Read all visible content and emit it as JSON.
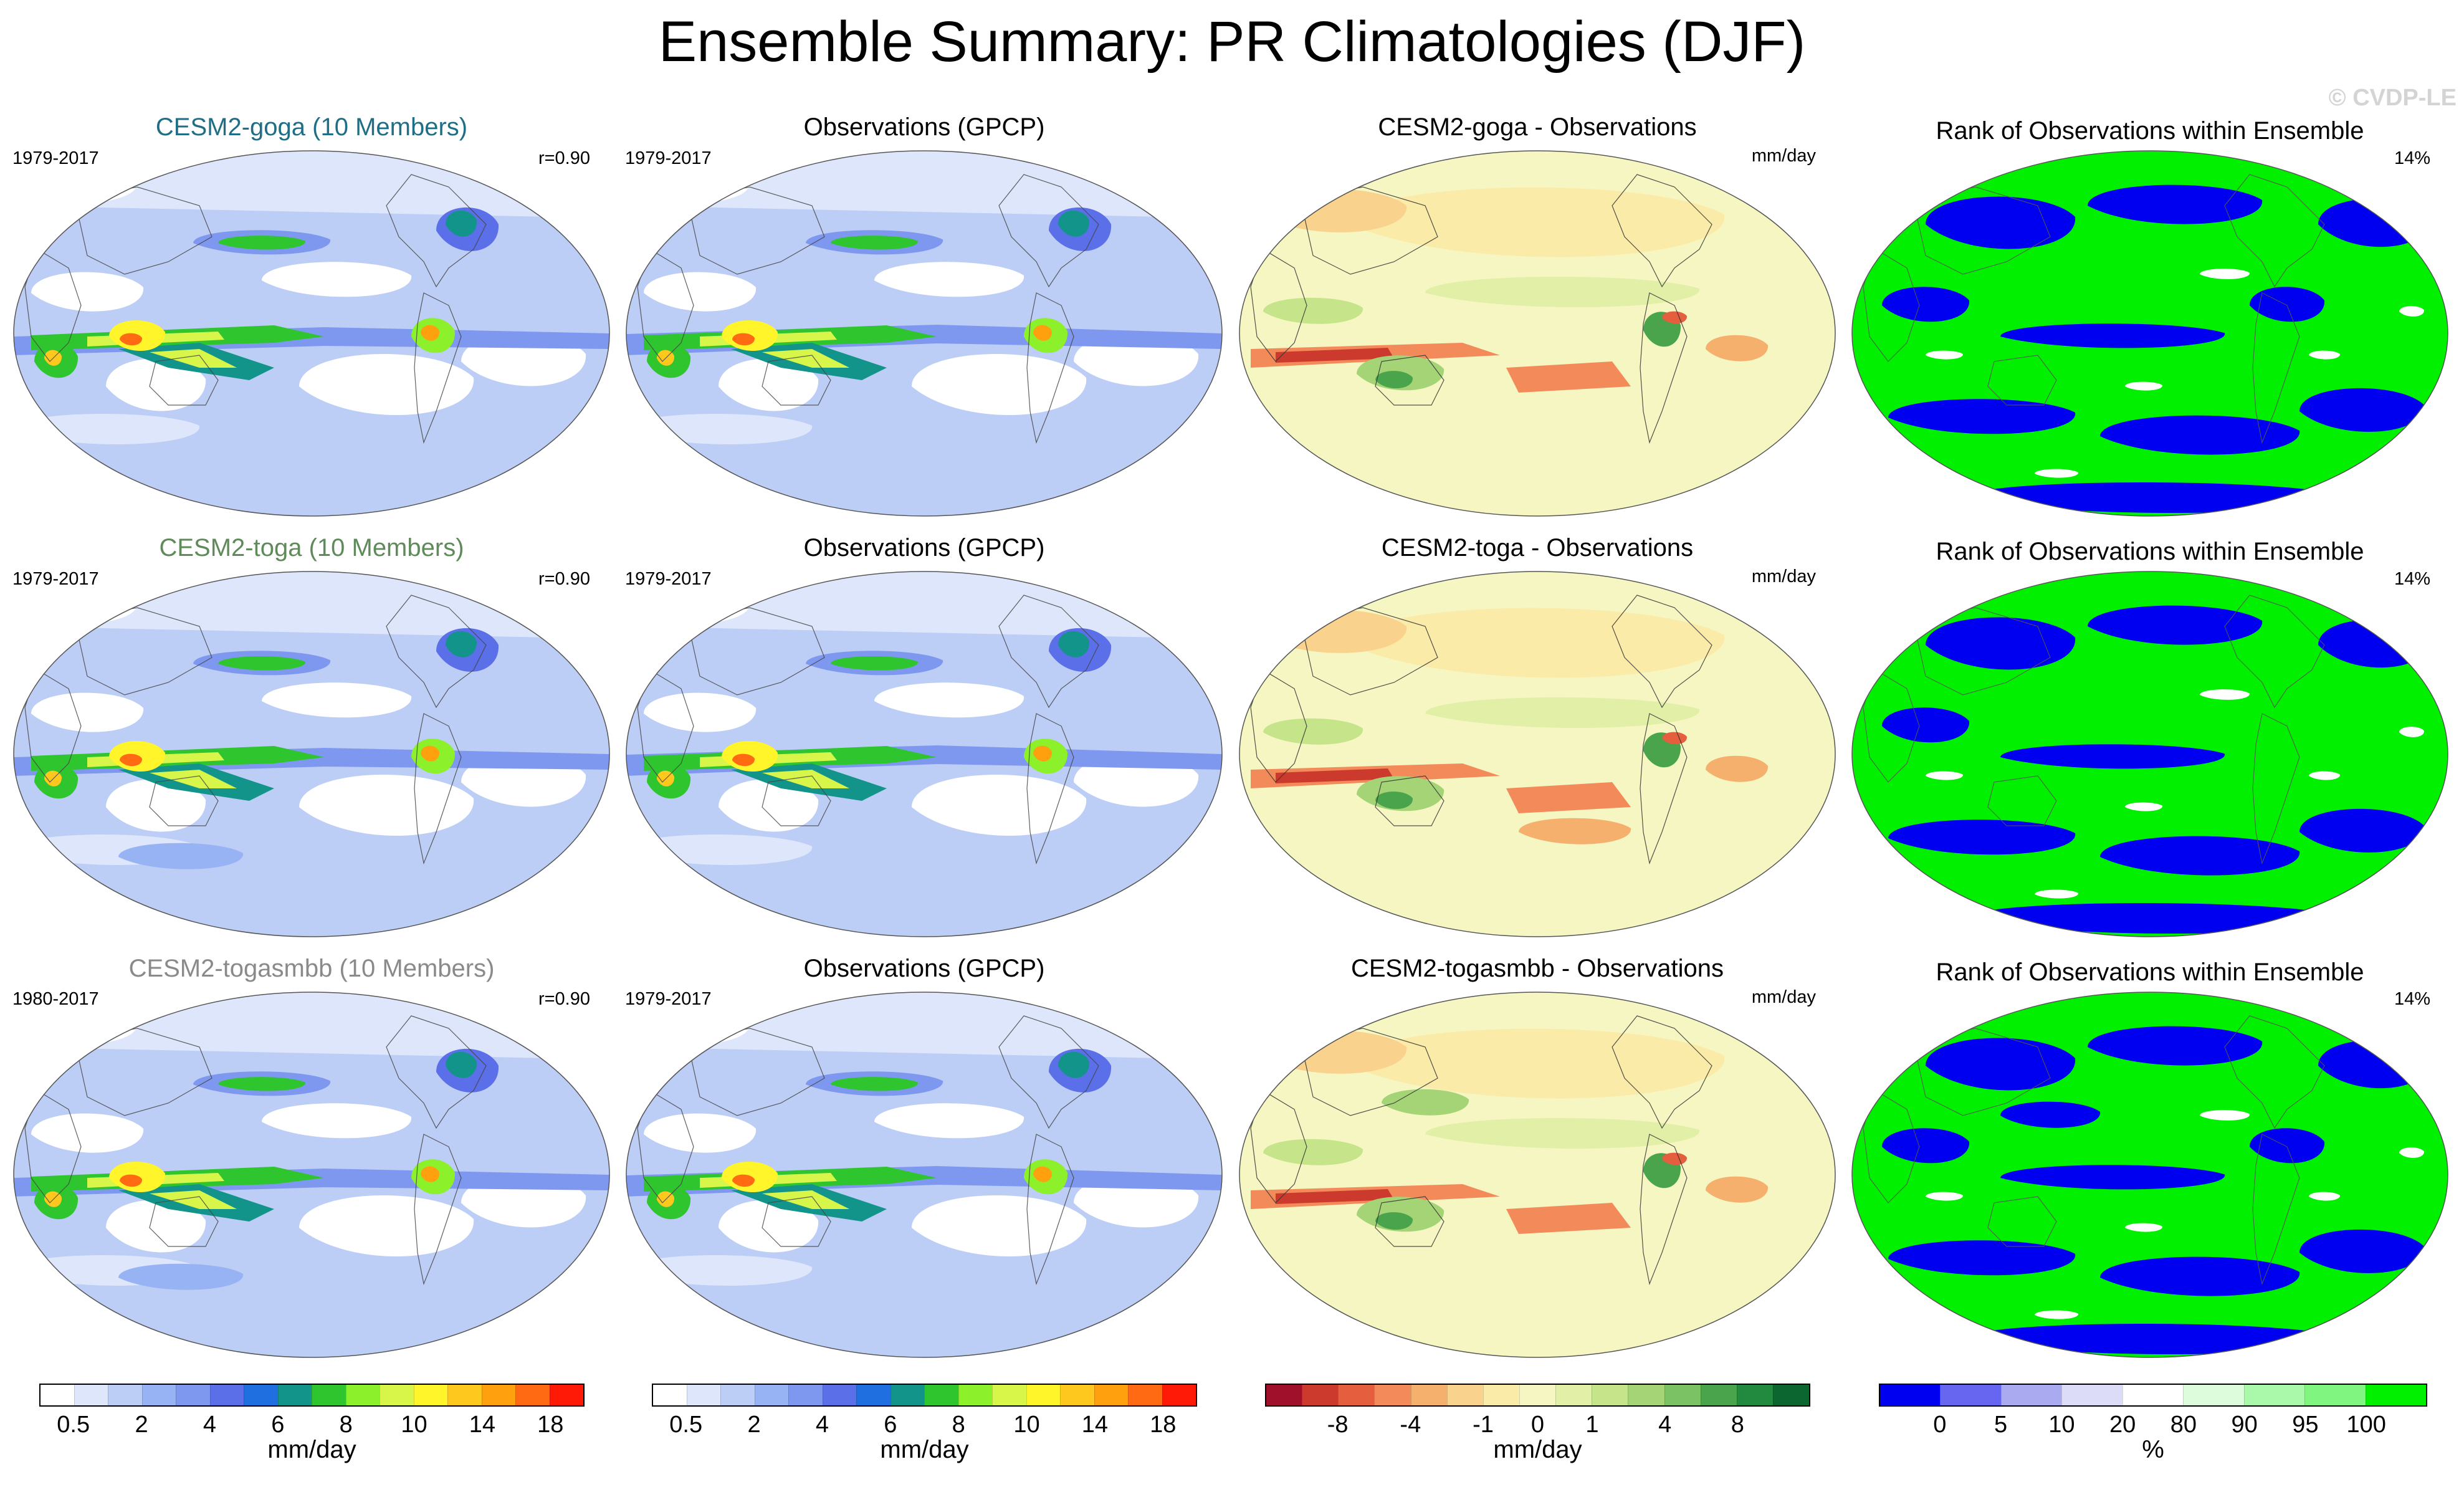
{
  "figure": {
    "title": "Ensemble Summary: PR Climatologies (DJF)",
    "copyright": "© CVDP-LE"
  },
  "rows": [
    {
      "model": {
        "title": "CESM2-goga (10 Members)",
        "title_color": "#1f6e86",
        "years": "1979-2017",
        "corr": "r=0.90"
      },
      "obs": {
        "title": "Observations (GPCP)",
        "years": "1979-2017"
      },
      "diff": {
        "title": "CESM2-goga - Observations",
        "unit": "mm/day"
      },
      "rank": {
        "title": "Rank of Observations within Ensemble",
        "pct": "14%"
      }
    },
    {
      "model": {
        "title": "CESM2-toga (10 Members)",
        "title_color": "#5f8a5a",
        "years": "1979-2017",
        "corr": "r=0.90"
      },
      "obs": {
        "title": "Observations (GPCP)",
        "years": "1979-2017"
      },
      "diff": {
        "title": "CESM2-toga - Observations",
        "unit": "mm/day"
      },
      "rank": {
        "title": "Rank of Observations within Ensemble",
        "pct": "14%"
      }
    },
    {
      "model": {
        "title": "CESM2-togasmbb (10 Members)",
        "title_color": "#8a8a8a",
        "years": "1980-2017",
        "corr": "r=0.90"
      },
      "obs": {
        "title": "Observations (GPCP)",
        "years": "1979-2017"
      },
      "diff": {
        "title": "CESM2-togasmbb - Observations",
        "unit": "mm/day"
      },
      "rank": {
        "title": "Rank of Observations within Ensemble",
        "pct": "14%"
      }
    }
  ],
  "colorbars": {
    "precip": {
      "colors": [
        "#ffffff",
        "#dde6fb",
        "#bccdf6",
        "#98b3f3",
        "#7f98ef",
        "#5b6fe8",
        "#1f6fe0",
        "#13948a",
        "#2fc52f",
        "#8cf02a",
        "#d8f54a",
        "#fff52a",
        "#ffc81e",
        "#ffa00e",
        "#ff6a12",
        "#ff1a08"
      ],
      "labels": [
        "0.5",
        "2",
        "4",
        "6",
        "8",
        "10",
        "14",
        "18"
      ],
      "unit": "mm/day"
    },
    "diff": {
      "colors": [
        "#a0102a",
        "#cc3a2e",
        "#e55f3e",
        "#f38a5a",
        "#f6b06e",
        "#f9d38e",
        "#fbeba8",
        "#f6f6c2",
        "#e2efa6",
        "#c6e48a",
        "#a4d476",
        "#7ac264",
        "#4aa44c",
        "#228a3e",
        "#0b6630"
      ],
      "labels": [
        "-8",
        "-4",
        "-1",
        "0",
        "1",
        "4",
        "8"
      ],
      "unit": "mm/day"
    },
    "rank": {
      "colors": [
        "#0000f0",
        "#6666f0",
        "#aaaaf0",
        "#dcdcf8",
        "#ffffff",
        "#dcfcdc",
        "#aaf8aa",
        "#80f580",
        "#00f000"
      ],
      "labels": [
        "0",
        "5",
        "10",
        "20",
        "80",
        "90",
        "95",
        "100"
      ],
      "unit": "%"
    }
  }
}
